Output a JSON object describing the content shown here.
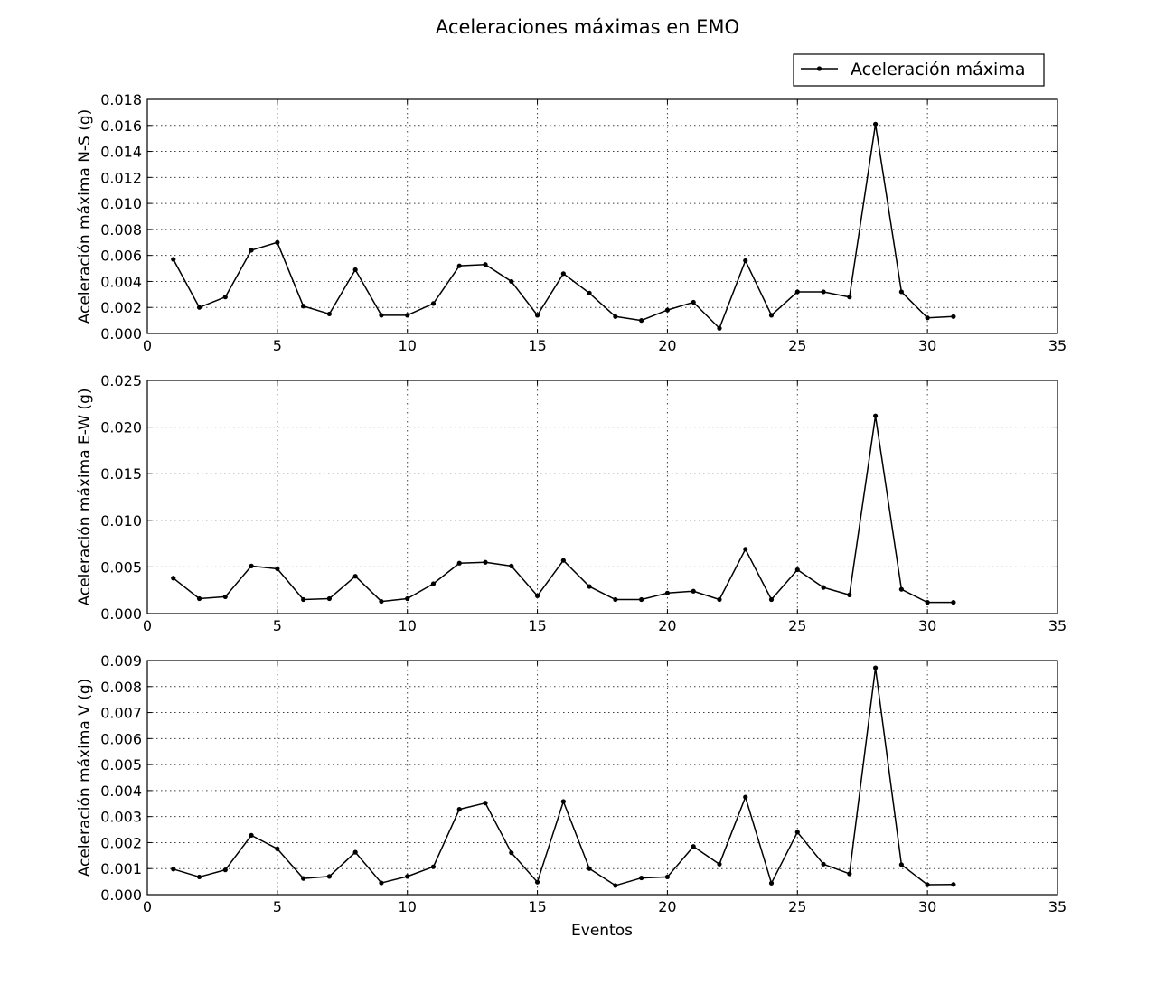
{
  "figure_title": "Aceleraciones máximas en EMO",
  "legend": {
    "label": "Aceleración máxima",
    "placement": "top-right"
  },
  "xlabel": "Eventos",
  "chart_data": [
    {
      "type": "line",
      "ylabel": "Aceleración máxima N-S (g)",
      "xlim": [
        0,
        35
      ],
      "ylim": [
        0,
        0.018
      ],
      "xticks": [
        0,
        5,
        10,
        15,
        20,
        25,
        30,
        35
      ],
      "yticks": [
        0,
        0.002,
        0.004,
        0.006,
        0.008,
        0.01,
        0.012,
        0.014,
        0.016,
        0.018
      ],
      "xtick_labels": [
        "0",
        "5",
        "10",
        "15",
        "20",
        "25",
        "30",
        "35"
      ],
      "ytick_labels": [
        "0.000",
        "0.002",
        "0.004",
        "0.006",
        "0.008",
        "0.010",
        "0.012",
        "0.014",
        "0.016",
        "0.018"
      ],
      "grid": true,
      "series": [
        {
          "name": "Aceleración máxima",
          "color": "#000000",
          "x": [
            1,
            2,
            3,
            4,
            5,
            6,
            7,
            8,
            9,
            10,
            11,
            12,
            13,
            14,
            15,
            16,
            17,
            18,
            19,
            20,
            21,
            22,
            23,
            24,
            25,
            26,
            27,
            28,
            29,
            30,
            31
          ],
          "y": [
            0.0057,
            0.002,
            0.0028,
            0.0064,
            0.007,
            0.0021,
            0.0015,
            0.0049,
            0.0014,
            0.0014,
            0.0023,
            0.0052,
            0.0053,
            0.004,
            0.0014,
            0.0046,
            0.0031,
            0.0013,
            0.001,
            0.0018,
            0.0024,
            0.0004,
            0.0056,
            0.0014,
            0.0032,
            0.0032,
            0.0028,
            0.0161,
            0.0032,
            0.0012,
            0.0013
          ]
        }
      ]
    },
    {
      "type": "line",
      "ylabel": "Aceleración máxima E-W (g)",
      "xlim": [
        0,
        35
      ],
      "ylim": [
        0,
        0.025
      ],
      "xticks": [
        0,
        5,
        10,
        15,
        20,
        25,
        30,
        35
      ],
      "yticks": [
        0,
        0.005,
        0.01,
        0.015,
        0.02,
        0.025
      ],
      "xtick_labels": [
        "0",
        "5",
        "10",
        "15",
        "20",
        "25",
        "30",
        "35"
      ],
      "ytick_labels": [
        "0.000",
        "0.005",
        "0.010",
        "0.015",
        "0.020",
        "0.025"
      ],
      "grid": true,
      "series": [
        {
          "name": "Aceleración máxima",
          "color": "#000000",
          "x": [
            1,
            2,
            3,
            4,
            5,
            6,
            7,
            8,
            9,
            10,
            11,
            12,
            13,
            14,
            15,
            16,
            17,
            18,
            19,
            20,
            21,
            22,
            23,
            24,
            25,
            26,
            27,
            28,
            29,
            30,
            31
          ],
          "y": [
            0.0038,
            0.0016,
            0.0018,
            0.0051,
            0.0048,
            0.0015,
            0.0016,
            0.004,
            0.0013,
            0.0016,
            0.0032,
            0.0054,
            0.0055,
            0.0051,
            0.0019,
            0.0057,
            0.0029,
            0.0015,
            0.0015,
            0.0022,
            0.0024,
            0.0015,
            0.0069,
            0.0015,
            0.0047,
            0.0028,
            0.002,
            0.0212,
            0.0026,
            0.0012,
            0.0012
          ]
        }
      ]
    },
    {
      "type": "line",
      "ylabel": "Aceleración máxima V (g)",
      "xlim": [
        0,
        35
      ],
      "ylim": [
        0,
        0.009
      ],
      "xticks": [
        0,
        5,
        10,
        15,
        20,
        25,
        30,
        35
      ],
      "yticks": [
        0,
        0.001,
        0.002,
        0.003,
        0.004,
        0.005,
        0.006,
        0.007,
        0.008,
        0.009
      ],
      "xtick_labels": [
        "0",
        "5",
        "10",
        "15",
        "20",
        "25",
        "30",
        "35"
      ],
      "ytick_labels": [
        "0.000",
        "0.001",
        "0.002",
        "0.003",
        "0.004",
        "0.005",
        "0.006",
        "0.007",
        "0.008",
        "0.009"
      ],
      "grid": true,
      "series": [
        {
          "name": "Aceleración máxima",
          "color": "#000000",
          "x": [
            1,
            2,
            3,
            4,
            5,
            6,
            7,
            8,
            9,
            10,
            11,
            12,
            13,
            14,
            15,
            16,
            17,
            18,
            19,
            20,
            21,
            22,
            23,
            24,
            25,
            26,
            27,
            28,
            29,
            30,
            31
          ],
          "y": [
            0.00098,
            0.00068,
            0.00095,
            0.00228,
            0.00176,
            0.00062,
            0.0007,
            0.00163,
            0.00045,
            0.0007,
            0.00107,
            0.00328,
            0.00352,
            0.00161,
            0.00048,
            0.00358,
            0.001,
            0.00035,
            0.00064,
            0.00068,
            0.00185,
            0.00117,
            0.00375,
            0.00044,
            0.0024,
            0.00117,
            0.0008,
            0.00872,
            0.00115,
            0.00038,
            0.00039
          ]
        }
      ]
    }
  ]
}
